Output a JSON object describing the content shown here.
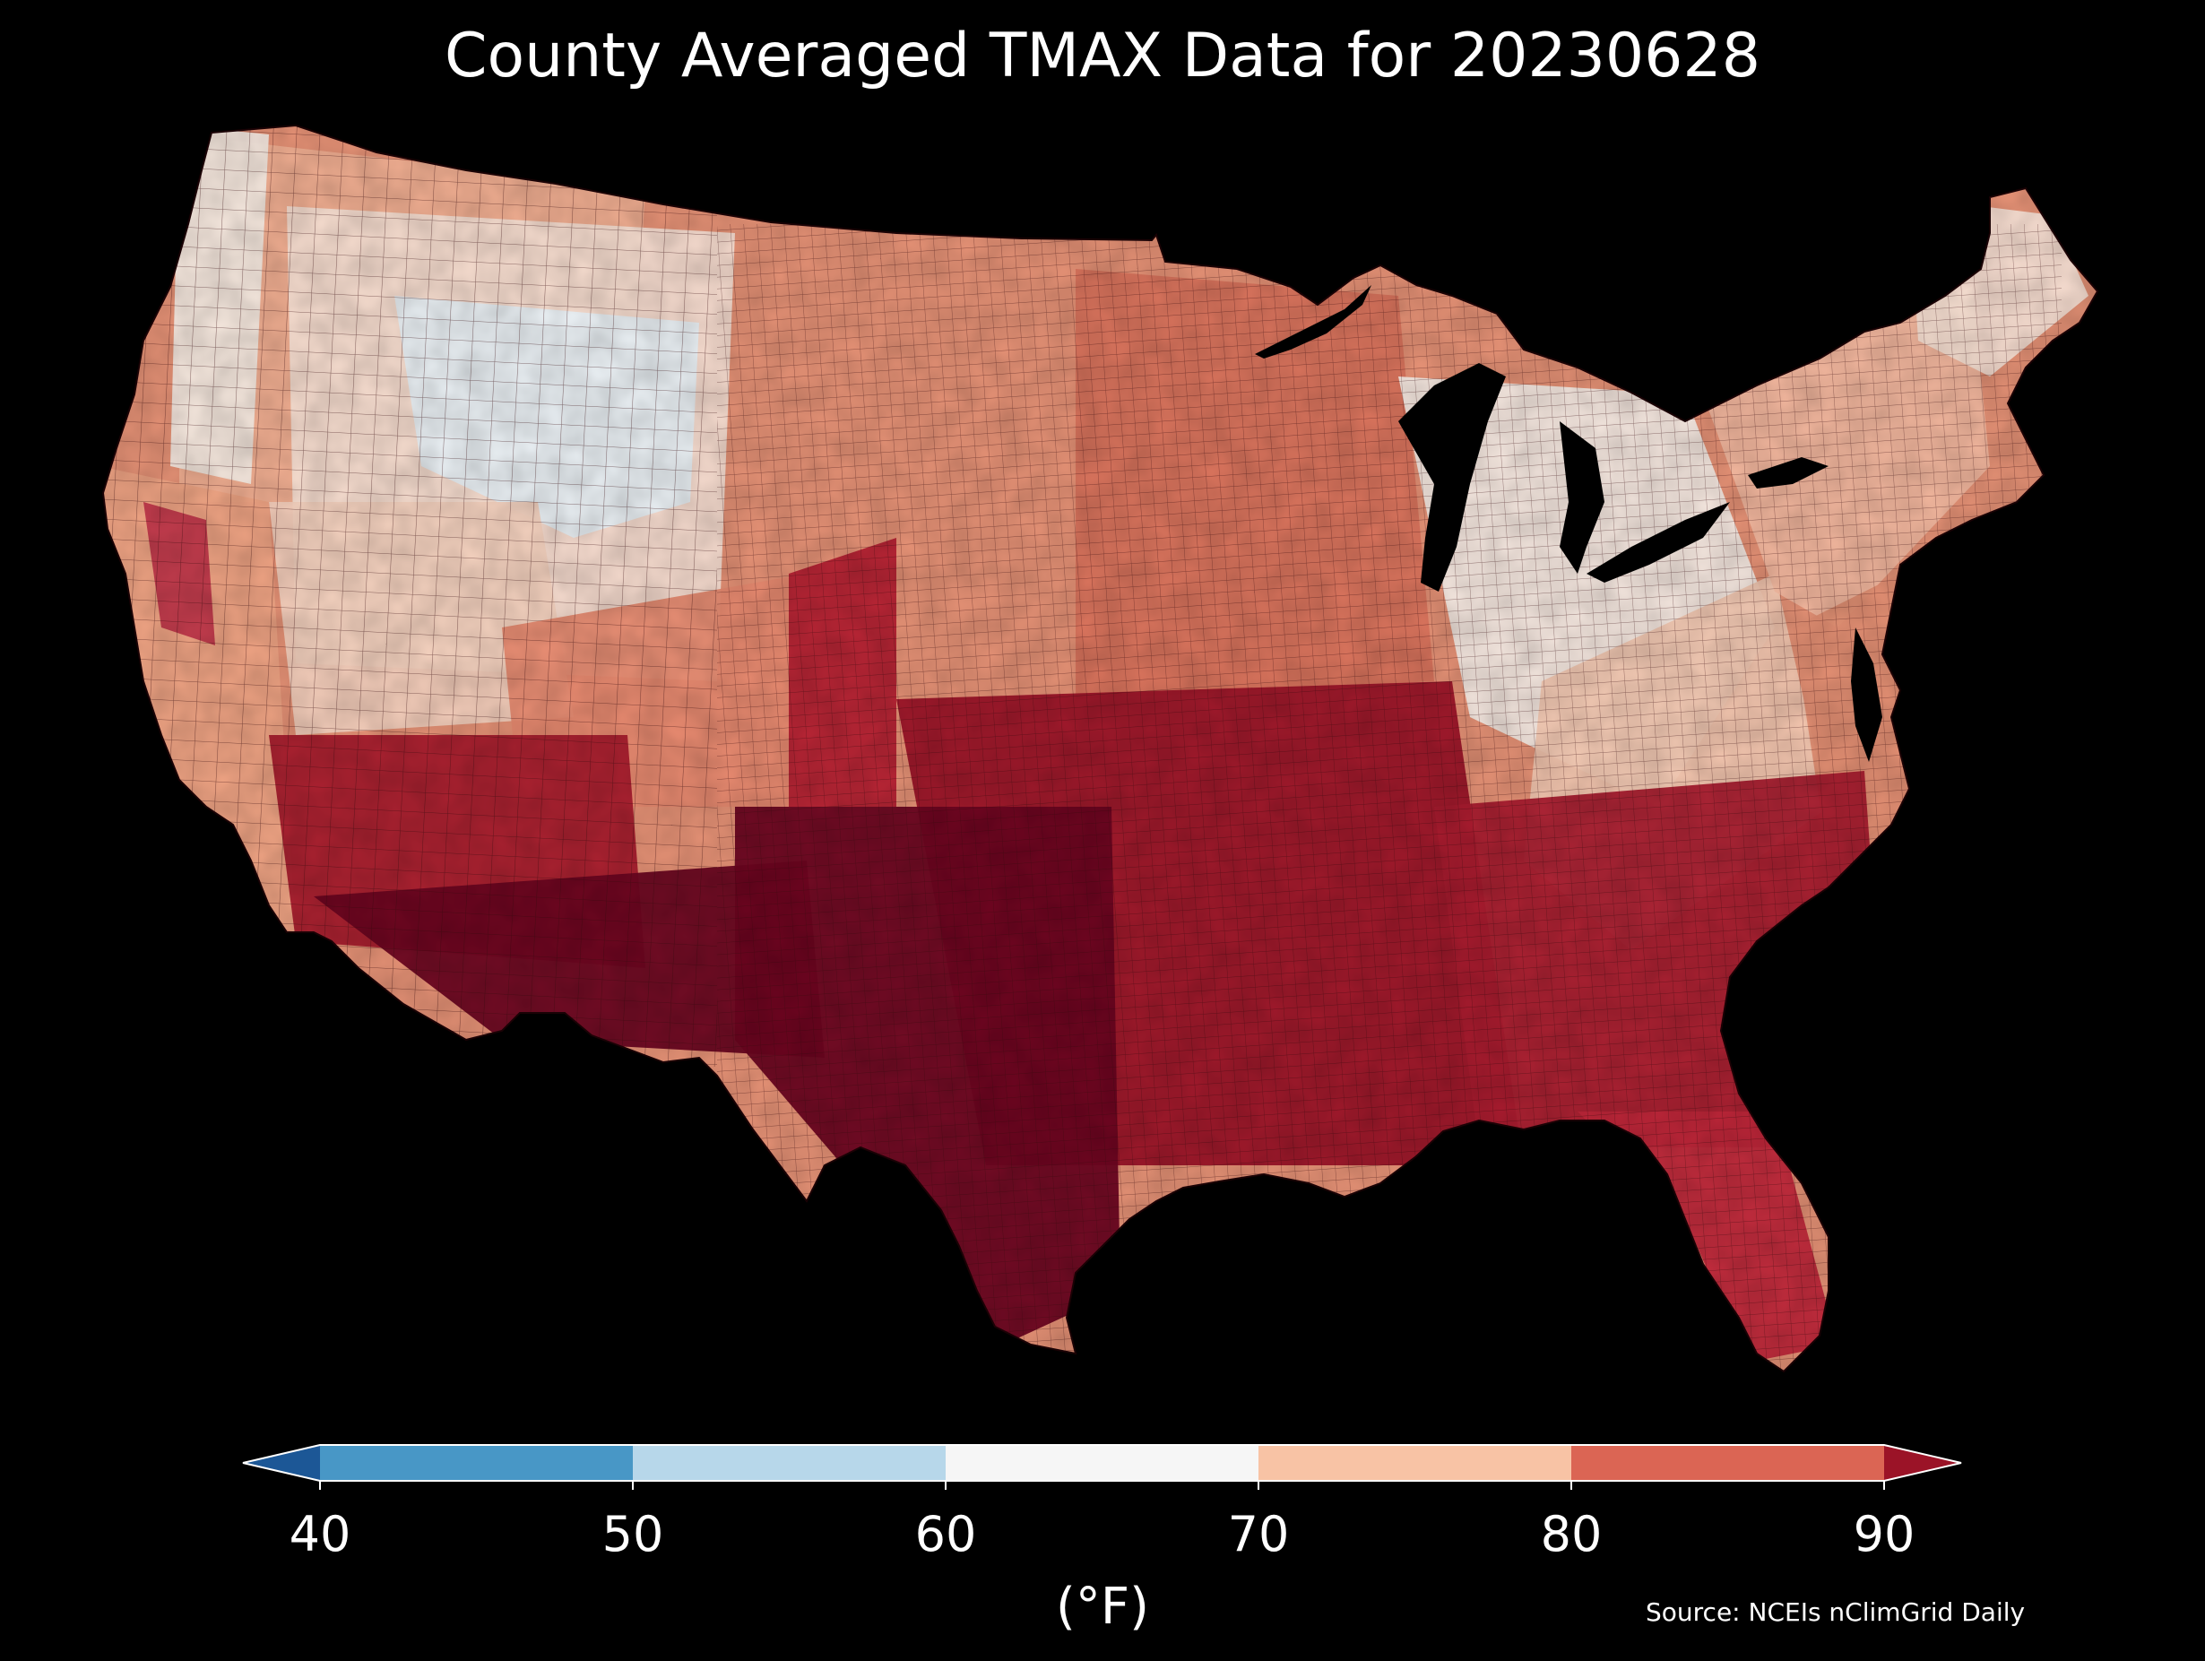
{
  "title": "County Averaged TMAX Data for 20230628",
  "colorbar": {
    "ticks": [
      "40",
      "50",
      "60",
      "70",
      "80",
      "90"
    ],
    "bins": [
      {
        "label": "under 40",
        "color": "#1c5796"
      },
      {
        "label": "40-50",
        "color": "#4897c6"
      },
      {
        "label": "50-60",
        "color": "#b7d7ea"
      },
      {
        "label": "60-70",
        "color": "#f6f6f6"
      },
      {
        "label": "70-80",
        "color": "#f8c3a5"
      },
      {
        "label": "80-90",
        "color": "#db6554"
      },
      {
        "label": "over 90",
        "color": "#9b1327"
      }
    ],
    "unit": "(°F)"
  },
  "source": "Source: NCEIs nClimGrid Daily",
  "map": {
    "region": "Contiguous United States",
    "variable": "TMAX",
    "units": "°F",
    "background": "#000000",
    "county_border_color": "#3a0a0e",
    "ocean_color": "#000000",
    "regions": [
      {
        "name": "pacific-northwest-coast",
        "color": "#f7ece4"
      },
      {
        "name": "northwest-interior",
        "color": "#f2b194"
      },
      {
        "name": "northern-rockies",
        "color": "#f8e0d4"
      },
      {
        "name": "wyoming-idaho-cool",
        "color": "#eaf1f7"
      },
      {
        "name": "northern-plains",
        "color": "#e69276"
      },
      {
        "name": "upper-midwest",
        "color": "#d9735c"
      },
      {
        "name": "great-lakes-ohio-valley",
        "color": "#f7ede6"
      },
      {
        "name": "appalachia",
        "color": "#f4c9b2"
      },
      {
        "name": "northeast",
        "color": "#f3b9a0"
      },
      {
        "name": "new-england",
        "color": "#f9e3d6"
      },
      {
        "name": "california-coast",
        "color": "#f0a585"
      },
      {
        "name": "central-valley",
        "color": "#c0374a"
      },
      {
        "name": "great-basin",
        "color": "#f6d2bf"
      },
      {
        "name": "southwest-desert",
        "color": "#a61b2c"
      },
      {
        "name": "arizona-south",
        "color": "#6a0520"
      },
      {
        "name": "southern-rockies",
        "color": "#e88a70"
      },
      {
        "name": "high-plains-hot",
        "color": "#b52031"
      },
      {
        "name": "texas",
        "color": "#6b0420"
      },
      {
        "name": "south-central",
        "color": "#9b1327"
      },
      {
        "name": "southeast",
        "color": "#a81b2e"
      },
      {
        "name": "mid-atlantic",
        "color": "#e38f73"
      },
      {
        "name": "florida",
        "color": "#c0273a"
      }
    ]
  }
}
